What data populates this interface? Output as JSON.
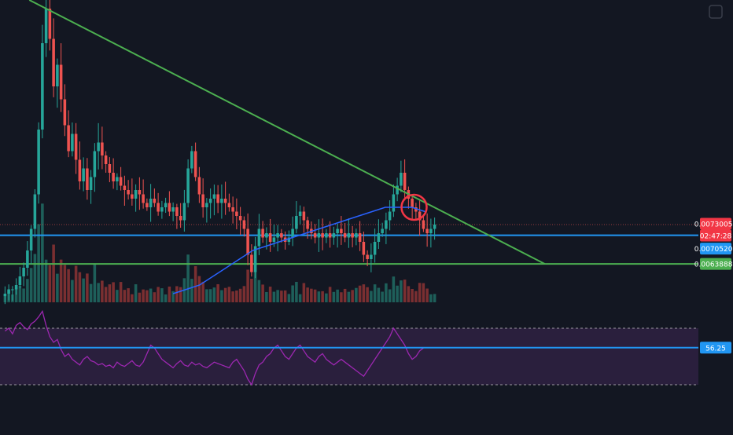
{
  "colors": {
    "background": "#131722",
    "up": "#26a69a",
    "down": "#ef5350",
    "volume_up": "#1e5f5a",
    "volume_down": "#7a2f31",
    "trendline": "#4caf50",
    "horizontal_blue": "#2196f3",
    "horizontal_green": "#4caf50",
    "moving_average": "#2962ff",
    "rsi_line": "#9c27b0",
    "rsi_band": "#2a1f3d",
    "marker_circle": "#f23645"
  },
  "icons": {
    "top_right": "square-button-icon"
  },
  "chart_data": [
    {
      "type": "candlestick",
      "description_series": "price",
      "price_labels": [
        {
          "text": "0.00730050",
          "kind": "last-price",
          "value": 0.0073005,
          "color": "#f23645"
        },
        {
          "text": "02:47:28",
          "kind": "countdown",
          "color": "#f23645"
        },
        {
          "text": "0.00705200",
          "kind": "horizontal-line",
          "value": 0.007052,
          "color": "#2196f3"
        },
        {
          "text": "0.00638882",
          "kind": "horizontal-line",
          "value": 0.00638882,
          "color": "#4caf50"
        }
      ],
      "horizontal_lines": [
        {
          "value": 0.007052,
          "color": "#2196f3"
        },
        {
          "value": 0.00638882,
          "color": "#4caf50"
        }
      ],
      "price_range_estimate": [
        0.0055,
        0.0125
      ],
      "trendline": {
        "from": {
          "bar": 7,
          "price": 0.0125
        },
        "to": {
          "bar": 145,
          "price": 0.00638882
        }
      },
      "marker": {
        "shape": "circle",
        "bar": 110,
        "price": 0.0077
      },
      "closes": [
        0.0057,
        0.0058,
        0.0058,
        0.0059,
        0.0061,
        0.0063,
        0.0067,
        0.0072,
        0.008,
        0.0095,
        0.0115,
        0.0123,
        0.0116,
        0.0105,
        0.011,
        0.0102,
        0.0096,
        0.009,
        0.0094,
        0.0088,
        0.0083,
        0.0086,
        0.0081,
        0.0084,
        0.009,
        0.0092,
        0.0089,
        0.0087,
        0.0085,
        0.0083,
        0.0084,
        0.0082,
        0.0081,
        0.008,
        0.0079,
        0.0081,
        0.008,
        0.0078,
        0.0077,
        0.0079,
        0.0078,
        0.0076,
        0.0077,
        0.0078,
        0.0076,
        0.0077,
        0.0075,
        0.0074,
        0.0078,
        0.0086,
        0.009,
        0.0084,
        0.008,
        0.0077,
        0.0078,
        0.0079,
        0.008,
        0.0078,
        0.0079,
        0.0078,
        0.0077,
        0.0076,
        0.0075,
        0.0074,
        0.0072,
        0.0066,
        0.0062,
        0.0068,
        0.0072,
        0.007,
        0.0071,
        0.0069,
        0.007,
        0.0071,
        0.007,
        0.0069,
        0.007,
        0.0072,
        0.0075,
        0.0076,
        0.0074,
        0.0072,
        0.0071,
        0.007,
        0.0071,
        0.007,
        0.0071,
        0.007,
        0.0071,
        0.0072,
        0.0071,
        0.007,
        0.0071,
        0.007,
        0.0071,
        0.0069,
        0.0066,
        0.0065,
        0.0066,
        0.0069,
        0.0071,
        0.0072,
        0.0074,
        0.0076,
        0.008,
        0.0082,
        0.0085,
        0.0081,
        0.0079,
        0.0077,
        0.0076,
        0.0074,
        0.0072,
        0.0071,
        0.0072,
        0.0073
      ],
      "moving_average": {
        "start_bar": 45,
        "values": [
          0.0057,
          0.0058,
          0.0059,
          0.0061,
          0.0063,
          0.0065,
          0.0067,
          0.0068,
          0.0069,
          0.007,
          0.0071,
          0.0072,
          0.0073,
          0.0074,
          0.0075,
          0.0076,
          0.0077,
          0.0077,
          0.0077,
          0.0076
        ]
      }
    },
    {
      "type": "line",
      "description_series": "rsi",
      "label": {
        "text": "56.25",
        "value": 56.25
      },
      "bands": [
        70,
        30
      ],
      "ylim": [
        20,
        80
      ],
      "values": [
        68,
        70,
        66,
        72,
        74,
        71,
        69,
        73,
        75,
        78,
        82,
        72,
        64,
        60,
        62,
        55,
        50,
        52,
        48,
        46,
        44,
        48,
        50,
        47,
        46,
        44,
        45,
        43,
        44,
        42,
        46,
        44,
        43,
        45,
        47,
        44,
        43,
        46,
        52,
        58,
        56,
        52,
        48,
        46,
        44,
        42,
        45,
        47,
        44,
        43,
        46,
        44,
        45,
        43,
        42,
        44,
        46,
        45,
        44,
        43,
        42,
        46,
        48,
        44,
        40,
        34,
        30,
        38,
        44,
        46,
        50,
        52,
        56,
        58,
        54,
        50,
        48,
        52,
        56,
        58,
        54,
        50,
        48,
        46,
        50,
        52,
        48,
        46,
        44,
        46,
        48,
        46,
        44,
        42,
        40,
        38,
        36,
        40,
        44,
        48,
        52,
        56,
        60,
        64,
        70,
        66,
        62,
        58,
        52,
        48,
        50,
        54,
        56
      ]
    }
  ]
}
